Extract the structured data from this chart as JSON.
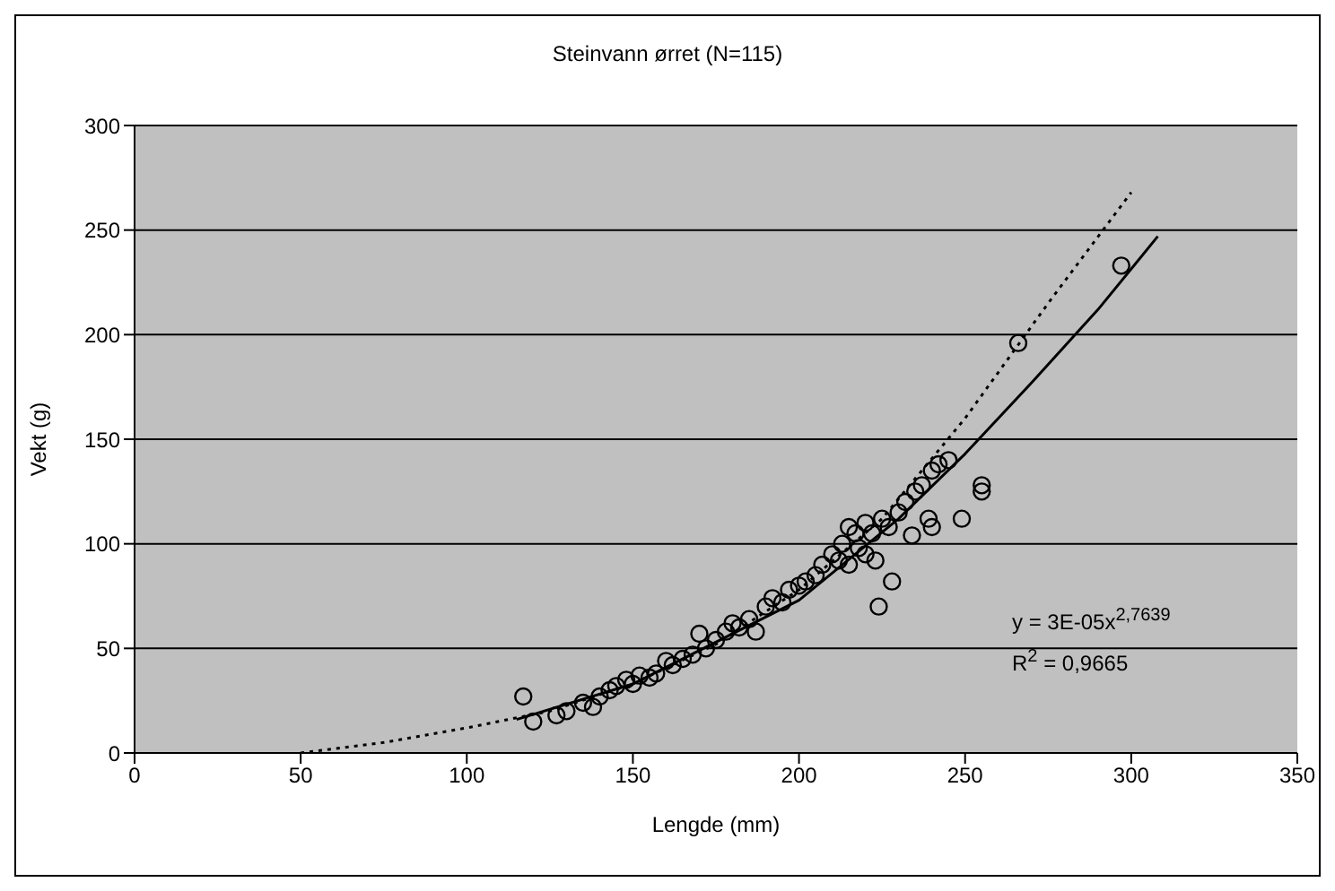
{
  "chart_data": {
    "type": "scatter",
    "title": "Steinvann  ørret (N=115)",
    "xlabel": "Lengde (mm)",
    "ylabel": "Vekt (g)",
    "xlim": [
      0,
      350
    ],
    "xticks": [
      0,
      50,
      100,
      150,
      200,
      250,
      300,
      350
    ],
    "ylim": [
      0,
      300
    ],
    "yticks": [
      0,
      50,
      100,
      150,
      200,
      250,
      300
    ],
    "grid": "y",
    "legend": false,
    "marker": "circle",
    "annotations": [
      "y = 3E-05x$^{2,7639}$",
      "R$^{2}$ = 0,9665"
    ],
    "series": [
      {
        "color": "#000000",
        "x": [
          117,
          120,
          127,
          130,
          135,
          138,
          140,
          143,
          145,
          148,
          150,
          152,
          155,
          157,
          160,
          162,
          165,
          168,
          170,
          172,
          175,
          178,
          180,
          182,
          185,
          187,
          190,
          192,
          195,
          197,
          200,
          202,
          205,
          207,
          210,
          212,
          213,
          215,
          215,
          217,
          218,
          220,
          220,
          222,
          223,
          224,
          225,
          227,
          228,
          230,
          232,
          234,
          235,
          237,
          239,
          240,
          240,
          242,
          245,
          249,
          255,
          255,
          266,
          297
        ],
        "values": [
          27,
          15,
          18,
          20,
          24,
          22,
          27,
          30,
          32,
          35,
          33,
          37,
          36,
          38,
          44,
          42,
          45,
          47,
          57,
          50,
          54,
          58,
          62,
          60,
          64,
          58,
          70,
          74,
          72,
          78,
          80,
          82,
          85,
          90,
          95,
          92,
          100,
          108,
          90,
          105,
          98,
          110,
          95,
          105,
          92,
          70,
          112,
          108,
          82,
          115,
          120,
          104,
          125,
          128,
          112,
          135,
          108,
          138,
          140,
          112,
          128,
          125,
          196,
          233
        ]
      },
      {
        "type": "line",
        "color": "#000000",
        "marker": "none",
        "line_style": "solid",
        "x": [
          115,
          150,
          200,
          230,
          250,
          270,
          290,
          308
        ],
        "values": [
          16,
          33,
          73,
          112,
          143,
          177,
          212,
          247
        ]
      },
      {
        "type": "line",
        "color": "#000000",
        "marker": "none",
        "line_style": "dotted",
        "x": [
          50,
          75,
          100,
          125,
          150,
          175,
          200,
          225,
          250,
          275,
          300
        ],
        "values": [
          0,
          5,
          12,
          20,
          33,
          52,
          78,
          112,
          160,
          215,
          268
        ]
      }
    ]
  }
}
